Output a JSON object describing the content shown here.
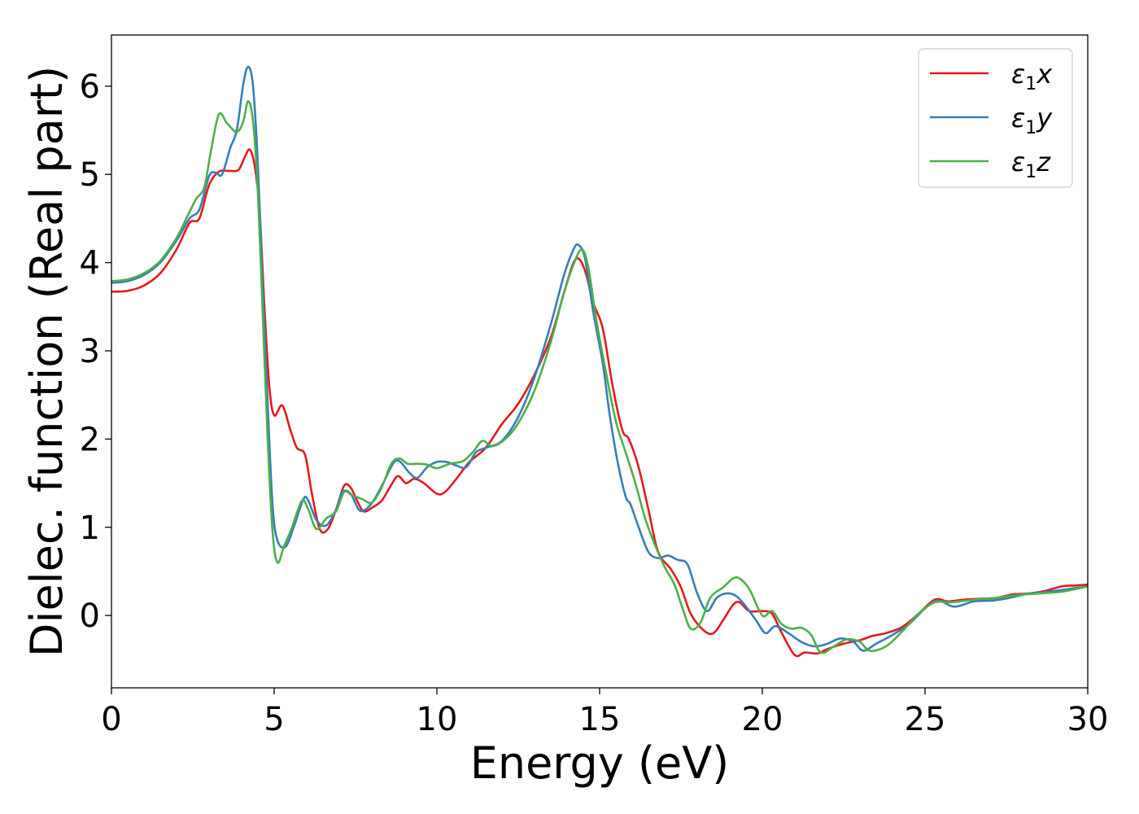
{
  "chart_data": {
    "type": "line",
    "xlabel": "Energy (eV)",
    "ylabel": "Dielec. function (Real part)",
    "xlim": [
      0,
      30
    ],
    "ylim": [
      -0.82,
      6.58
    ],
    "xticks": [
      0,
      5,
      10,
      15,
      20,
      25,
      30
    ],
    "yticks": [
      0,
      1,
      2,
      3,
      4,
      5,
      6
    ],
    "grid": false,
    "legend_position": "top-right",
    "series": [
      {
        "name": "ε₁x",
        "legend_base": "ε",
        "legend_sub": "1",
        "legend_var": "x",
        "color": "#e41a1c",
        "points": [
          [
            0,
            3.67
          ],
          [
            0.5,
            3.68
          ],
          [
            1,
            3.74
          ],
          [
            1.5,
            3.88
          ],
          [
            2,
            4.15
          ],
          [
            2.4,
            4.45
          ],
          [
            2.7,
            4.5
          ],
          [
            3,
            4.88
          ],
          [
            3.3,
            5.03
          ],
          [
            3.6,
            5.04
          ],
          [
            3.9,
            5.05
          ],
          [
            4.1,
            5.2
          ],
          [
            4.25,
            5.28
          ],
          [
            4.4,
            5.1
          ],
          [
            4.55,
            4.6
          ],
          [
            4.7,
            3.5
          ],
          [
            4.85,
            2.6
          ],
          [
            5,
            2.27
          ],
          [
            5.25,
            2.38
          ],
          [
            5.5,
            2.1
          ],
          [
            5.7,
            1.9
          ],
          [
            5.95,
            1.82
          ],
          [
            6.15,
            1.4
          ],
          [
            6.4,
            0.98
          ],
          [
            6.65,
            0.98
          ],
          [
            6.9,
            1.2
          ],
          [
            7.15,
            1.47
          ],
          [
            7.35,
            1.45
          ],
          [
            7.55,
            1.3
          ],
          [
            7.75,
            1.18
          ],
          [
            8,
            1.22
          ],
          [
            8.3,
            1.3
          ],
          [
            8.55,
            1.45
          ],
          [
            8.8,
            1.58
          ],
          [
            9.05,
            1.5
          ],
          [
            9.3,
            1.55
          ],
          [
            9.6,
            1.5
          ],
          [
            10,
            1.38
          ],
          [
            10.25,
            1.4
          ],
          [
            10.6,
            1.55
          ],
          [
            11,
            1.74
          ],
          [
            11.5,
            1.9
          ],
          [
            12,
            2.17
          ],
          [
            12.5,
            2.4
          ],
          [
            13,
            2.73
          ],
          [
            13.5,
            3.15
          ],
          [
            13.9,
            3.65
          ],
          [
            14.2,
            4.0
          ],
          [
            14.4,
            4.03
          ],
          [
            14.6,
            3.85
          ],
          [
            14.8,
            3.55
          ],
          [
            15.1,
            3.25
          ],
          [
            15.4,
            2.6
          ],
          [
            15.7,
            2.1
          ],
          [
            15.9,
            2.0
          ],
          [
            16.2,
            1.68
          ],
          [
            16.5,
            1.2
          ],
          [
            16.8,
            0.72
          ],
          [
            17.2,
            0.52
          ],
          [
            17.5,
            0.32
          ],
          [
            17.8,
            0.02
          ],
          [
            18.2,
            -0.17
          ],
          [
            18.5,
            -0.2
          ],
          [
            18.8,
            -0.05
          ],
          [
            19.1,
            0.12
          ],
          [
            19.3,
            0.15
          ],
          [
            19.6,
            0.05
          ],
          [
            20,
            0.05
          ],
          [
            20.3,
            0.02
          ],
          [
            20.6,
            -0.2
          ],
          [
            21,
            -0.45
          ],
          [
            21.3,
            -0.42
          ],
          [
            21.7,
            -0.43
          ],
          [
            22,
            -0.38
          ],
          [
            22.5,
            -0.32
          ],
          [
            23,
            -0.28
          ],
          [
            23.4,
            -0.23
          ],
          [
            23.8,
            -0.2
          ],
          [
            24.3,
            -0.13
          ],
          [
            24.8,
            0.02
          ],
          [
            25.3,
            0.18
          ],
          [
            25.7,
            0.16
          ],
          [
            26.2,
            0.18
          ],
          [
            26.7,
            0.19
          ],
          [
            27.2,
            0.2
          ],
          [
            27.7,
            0.24
          ],
          [
            28.2,
            0.25
          ],
          [
            28.7,
            0.28
          ],
          [
            29.2,
            0.33
          ],
          [
            29.6,
            0.34
          ],
          [
            30,
            0.35
          ]
        ]
      },
      {
        "name": "ε₁y",
        "legend_base": "ε",
        "legend_sub": "1",
        "legend_var": "y",
        "color": "#377eb8",
        "points": [
          [
            0,
            3.77
          ],
          [
            0.5,
            3.79
          ],
          [
            1,
            3.86
          ],
          [
            1.5,
            4.0
          ],
          [
            2,
            4.25
          ],
          [
            2.4,
            4.5
          ],
          [
            2.7,
            4.6
          ],
          [
            3,
            4.98
          ],
          [
            3.2,
            5.02
          ],
          [
            3.4,
            5.0
          ],
          [
            3.65,
            5.3
          ],
          [
            3.85,
            5.5
          ],
          [
            4.05,
            6.02
          ],
          [
            4.2,
            6.22
          ],
          [
            4.35,
            6.0
          ],
          [
            4.5,
            5.1
          ],
          [
            4.65,
            3.7
          ],
          [
            4.8,
            2.4
          ],
          [
            4.95,
            1.25
          ],
          [
            5.1,
            0.85
          ],
          [
            5.35,
            0.78
          ],
          [
            5.6,
            1.0
          ],
          [
            5.9,
            1.32
          ],
          [
            6.05,
            1.3
          ],
          [
            6.3,
            1.08
          ],
          [
            6.6,
            1.02
          ],
          [
            6.9,
            1.2
          ],
          [
            7.1,
            1.4
          ],
          [
            7.35,
            1.38
          ],
          [
            7.6,
            1.2
          ],
          [
            7.8,
            1.2
          ],
          [
            8.05,
            1.3
          ],
          [
            8.35,
            1.5
          ],
          [
            8.65,
            1.72
          ],
          [
            8.85,
            1.75
          ],
          [
            9.15,
            1.62
          ],
          [
            9.4,
            1.56
          ],
          [
            9.7,
            1.68
          ],
          [
            10,
            1.74
          ],
          [
            10.3,
            1.74
          ],
          [
            10.6,
            1.7
          ],
          [
            10.9,
            1.68
          ],
          [
            11.2,
            1.85
          ],
          [
            11.5,
            1.9
          ],
          [
            12,
            1.98
          ],
          [
            12.5,
            2.25
          ],
          [
            13,
            2.7
          ],
          [
            13.5,
            3.3
          ],
          [
            13.9,
            3.85
          ],
          [
            14.2,
            4.15
          ],
          [
            14.35,
            4.2
          ],
          [
            14.55,
            4.05
          ],
          [
            14.8,
            3.45
          ],
          [
            15.1,
            2.85
          ],
          [
            15.3,
            2.3
          ],
          [
            15.55,
            1.75
          ],
          [
            15.8,
            1.35
          ],
          [
            15.95,
            1.26
          ],
          [
            16.2,
            1.0
          ],
          [
            16.5,
            0.72
          ],
          [
            16.8,
            0.65
          ],
          [
            17.1,
            0.68
          ],
          [
            17.4,
            0.63
          ],
          [
            17.7,
            0.58
          ],
          [
            18,
            0.25
          ],
          [
            18.3,
            0.05
          ],
          [
            18.6,
            0.2
          ],
          [
            18.9,
            0.25
          ],
          [
            19.2,
            0.22
          ],
          [
            19.5,
            0.1
          ],
          [
            19.8,
            -0.05
          ],
          [
            20.1,
            -0.2
          ],
          [
            20.4,
            -0.12
          ],
          [
            20.8,
            -0.2
          ],
          [
            21.2,
            -0.3
          ],
          [
            21.6,
            -0.35
          ],
          [
            22,
            -0.32
          ],
          [
            22.4,
            -0.26
          ],
          [
            22.8,
            -0.3
          ],
          [
            23.1,
            -0.4
          ],
          [
            23.5,
            -0.32
          ],
          [
            24,
            -0.22
          ],
          [
            24.5,
            -0.1
          ],
          [
            25,
            0.08
          ],
          [
            25.4,
            0.17
          ],
          [
            25.9,
            0.1
          ],
          [
            26.5,
            0.16
          ],
          [
            27.1,
            0.17
          ],
          [
            27.6,
            0.2
          ],
          [
            28.2,
            0.25
          ],
          [
            28.8,
            0.27
          ],
          [
            29.4,
            0.3
          ],
          [
            30,
            0.33
          ]
        ]
      },
      {
        "name": "ε₁z",
        "legend_base": "ε",
        "legend_sub": "1",
        "legend_var": "z",
        "color": "#4daf4a",
        "points": [
          [
            0,
            3.79
          ],
          [
            0.5,
            3.81
          ],
          [
            1,
            3.88
          ],
          [
            1.5,
            4.02
          ],
          [
            2,
            4.28
          ],
          [
            2.3,
            4.5
          ],
          [
            2.6,
            4.72
          ],
          [
            2.85,
            4.85
          ],
          [
            3.05,
            5.25
          ],
          [
            3.3,
            5.68
          ],
          [
            3.55,
            5.58
          ],
          [
            3.85,
            5.48
          ],
          [
            4.05,
            5.6
          ],
          [
            4.2,
            5.83
          ],
          [
            4.35,
            5.6
          ],
          [
            4.5,
            4.8
          ],
          [
            4.65,
            3.4
          ],
          [
            4.8,
            2.0
          ],
          [
            4.95,
            0.95
          ],
          [
            5.1,
            0.6
          ],
          [
            5.3,
            0.78
          ],
          [
            5.55,
            1.0
          ],
          [
            5.85,
            1.3
          ],
          [
            6.05,
            1.2
          ],
          [
            6.3,
            0.98
          ],
          [
            6.6,
            1.1
          ],
          [
            6.9,
            1.18
          ],
          [
            7.15,
            1.4
          ],
          [
            7.4,
            1.36
          ],
          [
            7.7,
            1.32
          ],
          [
            8,
            1.28
          ],
          [
            8.3,
            1.45
          ],
          [
            8.6,
            1.72
          ],
          [
            8.85,
            1.78
          ],
          [
            9.1,
            1.72
          ],
          [
            9.4,
            1.72
          ],
          [
            9.7,
            1.71
          ],
          [
            10,
            1.67
          ],
          [
            10.4,
            1.72
          ],
          [
            10.8,
            1.75
          ],
          [
            11.1,
            1.85
          ],
          [
            11.4,
            1.98
          ],
          [
            11.7,
            1.92
          ],
          [
            12.1,
            2.0
          ],
          [
            12.5,
            2.18
          ],
          [
            13,
            2.55
          ],
          [
            13.5,
            3.1
          ],
          [
            13.9,
            3.65
          ],
          [
            14.2,
            3.98
          ],
          [
            14.45,
            4.15
          ],
          [
            14.65,
            3.95
          ],
          [
            14.9,
            3.35
          ],
          [
            15.2,
            2.75
          ],
          [
            15.5,
            2.2
          ],
          [
            15.8,
            1.85
          ],
          [
            16.1,
            1.5
          ],
          [
            16.4,
            1.1
          ],
          [
            16.7,
            0.8
          ],
          [
            17,
            0.55
          ],
          [
            17.3,
            0.35
          ],
          [
            17.55,
            0.08
          ],
          [
            17.8,
            -0.15
          ],
          [
            18.1,
            -0.08
          ],
          [
            18.4,
            0.2
          ],
          [
            18.8,
            0.32
          ],
          [
            19.1,
            0.42
          ],
          [
            19.3,
            0.42
          ],
          [
            19.6,
            0.3
          ],
          [
            20,
            0.0
          ],
          [
            20.3,
            0.05
          ],
          [
            20.6,
            -0.1
          ],
          [
            20.9,
            -0.15
          ],
          [
            21.2,
            -0.14
          ],
          [
            21.5,
            -0.22
          ],
          [
            21.8,
            -0.42
          ],
          [
            22.2,
            -0.35
          ],
          [
            22.6,
            -0.27
          ],
          [
            23,
            -0.3
          ],
          [
            23.3,
            -0.4
          ],
          [
            23.8,
            -0.35
          ],
          [
            24.3,
            -0.18
          ],
          [
            24.8,
            0.02
          ],
          [
            25.3,
            0.15
          ],
          [
            25.8,
            0.15
          ],
          [
            26.5,
            0.18
          ],
          [
            27.2,
            0.2
          ],
          [
            27.8,
            0.23
          ],
          [
            28.5,
            0.25
          ],
          [
            29.2,
            0.27
          ],
          [
            30,
            0.33
          ]
        ]
      }
    ]
  }
}
